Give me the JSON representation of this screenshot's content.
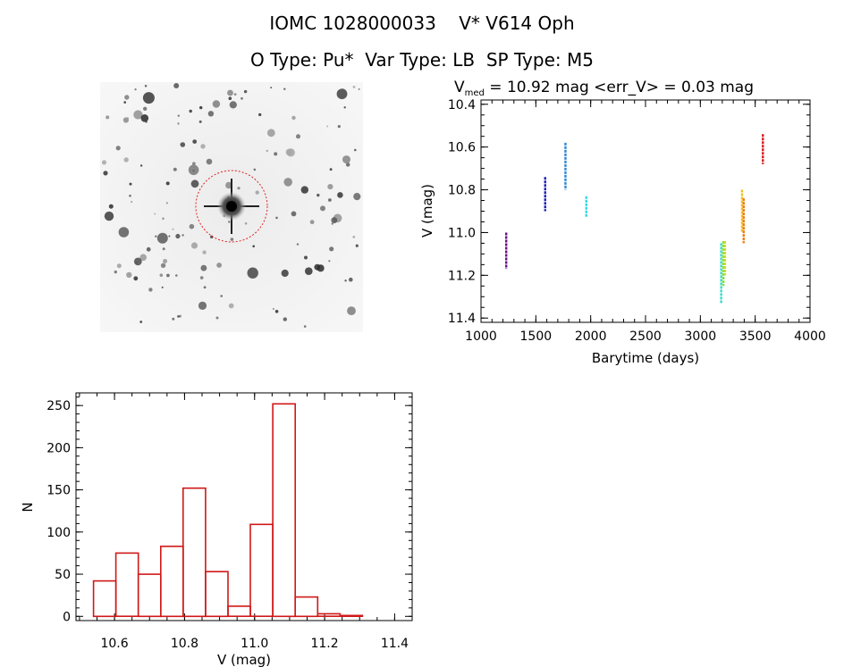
{
  "header": {
    "line1": "IOMC 1028000033    V* V614 Oph",
    "line2": "O Type: Pu*  Var Type: LB  SP Type: M5"
  },
  "thumbnail": {
    "description_icon": "star-field-icon",
    "circle_color": "#e02020"
  },
  "chart_data": [
    {
      "type": "scatter",
      "title_prefix": "V",
      "title_sub": "med",
      "title_suffix": " = 10.92 mag <err_V> = 0.03 mag",
      "xlabel": "Barytime (days)",
      "ylabel": "V (mag)",
      "xlim": [
        1000,
        4000
      ],
      "ylim": [
        11.42,
        10.38
      ],
      "xticks": [
        1000,
        1500,
        2000,
        2500,
        3000,
        3500,
        4000
      ],
      "yticks": [
        10.4,
        10.6,
        10.8,
        11.0,
        11.2,
        11.4
      ],
      "ytick_labels": [
        "10.4",
        "10.6",
        "10.8",
        "11.0",
        "11.2",
        "11.4"
      ],
      "series": [
        {
          "name": "g1",
          "color": "#6a0d8a",
          "x": 1230,
          "ymin": 11.0,
          "ymax": 11.17
        },
        {
          "name": "g2",
          "color": "#1d1db8",
          "x": 1585,
          "ymin": 10.74,
          "ymax": 10.9
        },
        {
          "name": "g3",
          "color": "#2b86d6",
          "x": 1770,
          "ymin": 10.58,
          "ymax": 10.8
        },
        {
          "name": "g4",
          "color": "#33d6e6",
          "x": 1960,
          "ymin": 10.83,
          "ymax": 10.93
        },
        {
          "name": "g5a",
          "color": "#3ad9c8",
          "x": 3190,
          "ymin": 11.05,
          "ymax": 11.33
        },
        {
          "name": "g5b",
          "color": "#88e03a",
          "x": 3210,
          "ymin": 11.04,
          "ymax": 11.25
        },
        {
          "name": "g5c",
          "color": "#c8e02a",
          "x": 3225,
          "ymin": 11.04,
          "ymax": 11.2
        },
        {
          "name": "g6a",
          "color": "#f0c020",
          "x": 3380,
          "ymin": 10.8,
          "ymax": 11.0
        },
        {
          "name": "g6b",
          "color": "#ee7a12",
          "x": 3395,
          "ymin": 10.84,
          "ymax": 11.05
        },
        {
          "name": "g7",
          "color": "#d91a1a",
          "x": 3570,
          "ymin": 10.54,
          "ymax": 10.68
        }
      ]
    },
    {
      "type": "bar",
      "style": "histogram",
      "xlabel": "V (mag)",
      "ylabel": "N",
      "xlim": [
        10.49,
        11.45
      ],
      "ylim": [
        -5,
        265
      ],
      "xticks": [
        10.6,
        10.8,
        11.0,
        11.2,
        11.4
      ],
      "xtick_labels": [
        "10.6",
        "10.8",
        "11.0",
        "11.2",
        "11.4"
      ],
      "yticks": [
        0,
        50,
        100,
        150,
        200,
        250
      ],
      "bin_width": 0.064,
      "bin_start": 10.54,
      "values": [
        42,
        75,
        50,
        83,
        152,
        53,
        12,
        109,
        252,
        23,
        3,
        1
      ],
      "color": "#d01818"
    }
  ]
}
